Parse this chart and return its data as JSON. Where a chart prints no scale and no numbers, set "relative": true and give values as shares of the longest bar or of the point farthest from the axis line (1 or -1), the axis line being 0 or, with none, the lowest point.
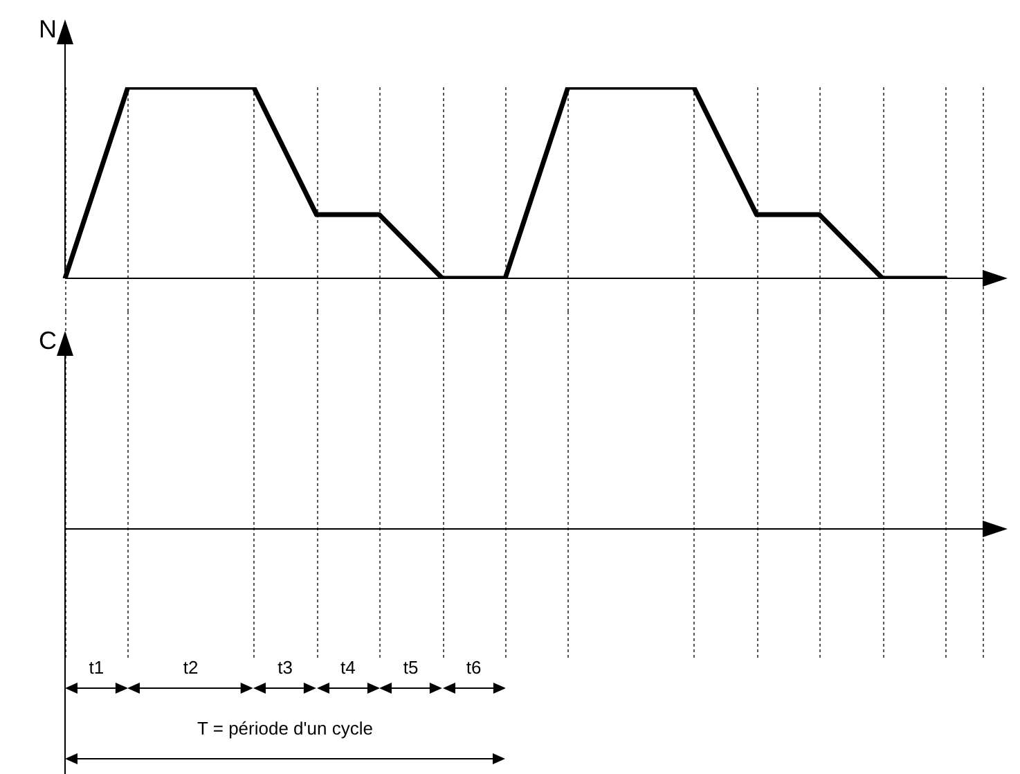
{
  "chart_data": [
    {
      "type": "line",
      "ylabel": "N",
      "relative": true,
      "marker": "none",
      "grid": "x",
      "color": "#000000",
      "categories": [
        null,
        null,
        null,
        null,
        null,
        null,
        null,
        null,
        null,
        null,
        null,
        null,
        null,
        null,
        null
      ],
      "values": [
        0,
        1,
        1,
        1,
        0.333,
        0.333,
        0,
        0,
        1,
        1,
        1,
        0.333,
        0.333,
        0,
        0
      ]
    },
    {
      "type": "other",
      "ylabel": "C",
      "annotations": [
        "t1",
        "t2",
        "t3",
        "t4",
        "t5",
        "t6",
        "T = période d'un cycle"
      ]
    }
  ]
}
